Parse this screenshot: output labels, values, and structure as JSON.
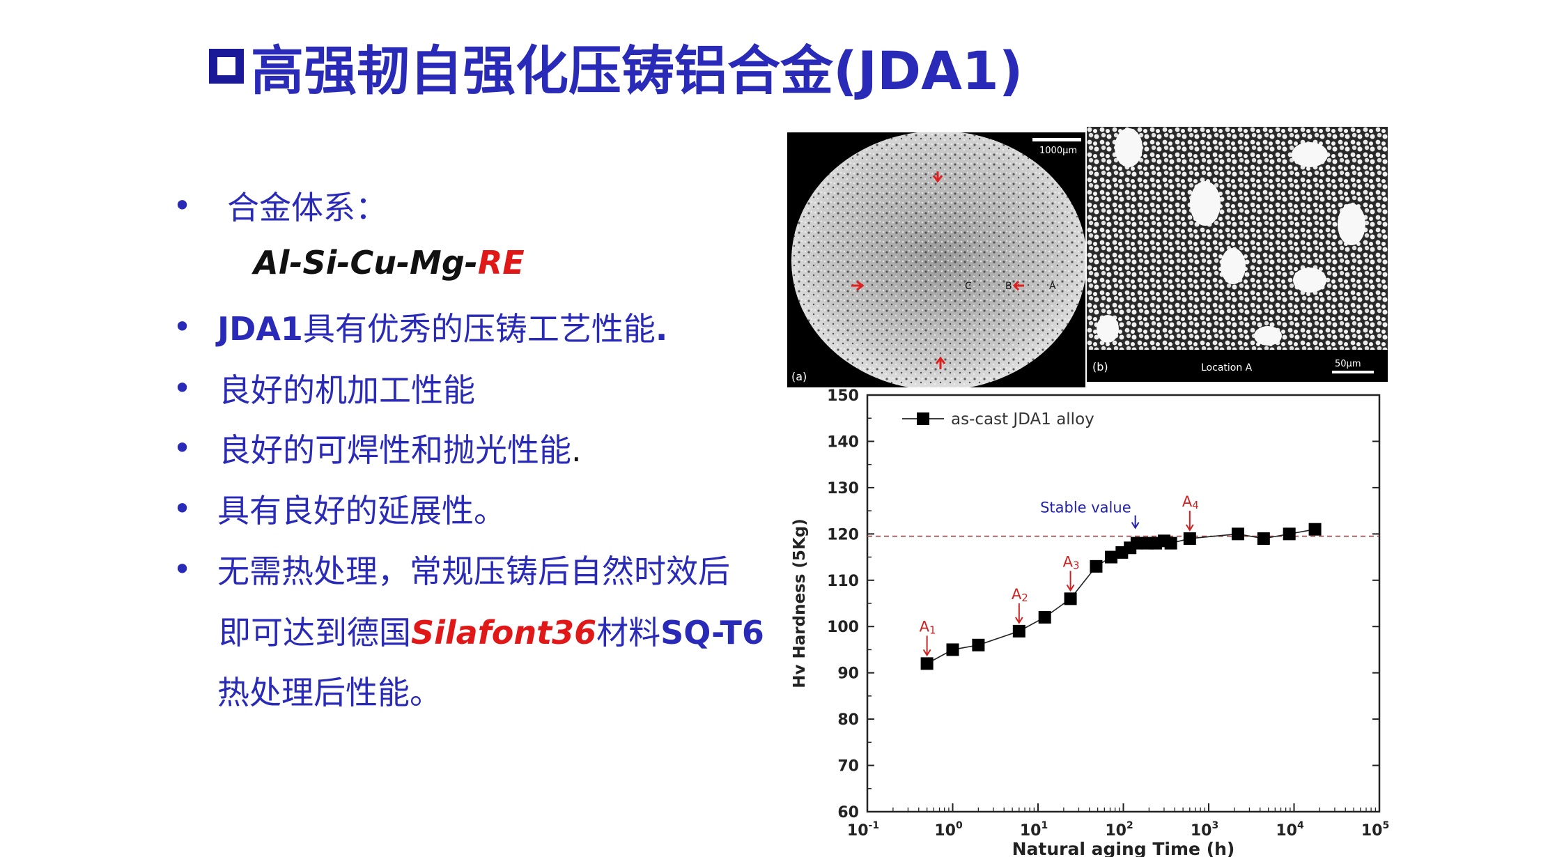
{
  "slide": {
    "title": "高强韧自强化压铸铝合金(JDA1)",
    "bullets": {
      "b1": "合金体系：",
      "alloy_black": "Al-Si-Cu-Mg-",
      "alloy_red": "RE",
      "b2_bold": "JDA1",
      "b2_rest": "具有优秀的压铸工艺性能",
      "b2_dot": ".",
      "b3": "良好的机加工性能",
      "b4": "良好的可焊性和抛光性能",
      "b4_dot": ".",
      "b5": "具有良好的延展性。",
      "b6_l1": "无需热处理，常规压铸后自然时效后",
      "b6_l2a": "即可达到德国",
      "b6_l2_red": "Silafont36",
      "b6_l2b": "材料",
      "b6_l2_bold": "SQ-T6",
      "b6_l3": "热处理后性能。"
    }
  },
  "micrographs": {
    "a": {
      "panel_label": "(a)",
      "scale_label": "1000μm",
      "letters": [
        "C",
        "B",
        "A"
      ]
    },
    "b": {
      "panel_label": "(b)",
      "location_label": "Location A",
      "scale_label": "50μm"
    }
  },
  "chart_data": {
    "type": "scatter",
    "xlabel": "Natural aging Time (h)",
    "ylabel": "Hv Hardness (5Kg)",
    "xscale": "log",
    "xlim": [
      0.1,
      100000
    ],
    "ylim": [
      60,
      150
    ],
    "yticks": [
      60,
      70,
      80,
      90,
      100,
      110,
      120,
      130,
      140,
      150
    ],
    "xtick_base": "10",
    "xtick_exponents": [
      "-1",
      "0",
      "1",
      "2",
      "3",
      "4",
      "5"
    ],
    "legend": "as-cast JDA1 alloy",
    "legend_position": "top-left",
    "stable_value": 119.5,
    "stable_label": "Stable value",
    "series": [
      {
        "name": "as-cast JDA1 alloy",
        "x": [
          0.5,
          1,
          2,
          6,
          12,
          24,
          48,
          72,
          96,
          120,
          144,
          192,
          240,
          300,
          360,
          600,
          2200,
          4400,
          8800,
          17600
        ],
        "y": [
          92,
          95,
          96,
          99,
          102,
          106,
          113,
          115,
          116,
          117,
          118,
          118,
          118,
          118.5,
          118,
          119,
          120,
          119,
          120,
          121
        ]
      }
    ],
    "annotations": [
      {
        "text": "A1",
        "x": 0.5,
        "y": 92
      },
      {
        "text": "A2",
        "x": 6,
        "y": 99
      },
      {
        "text": "A3",
        "x": 24,
        "y": 106
      },
      {
        "text": "A4",
        "x": 600,
        "y": 119
      }
    ],
    "colors": {
      "marker": "#000000",
      "annotation": "#cc2222",
      "stable": "#2222aa",
      "refline": "#a05050"
    }
  }
}
